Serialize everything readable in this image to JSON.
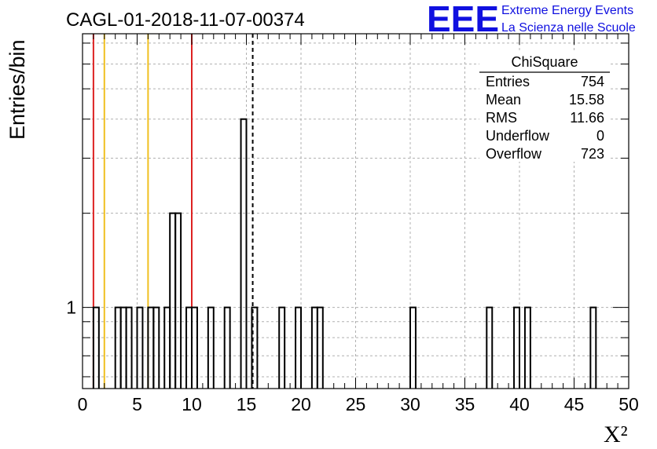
{
  "chart_data": {
    "type": "bar",
    "title": "CAGL-01-2018-11-07-00374",
    "xlabel": "X²",
    "ylabel": "Entries/bin",
    "xlim": [
      0,
      50
    ],
    "y_scale": "log",
    "ylim": [
      0.55,
      7.5
    ],
    "bin_width": 0.5,
    "x_tick_labels": [
      "0",
      "5",
      "10",
      "15",
      "20",
      "25",
      "30",
      "35",
      "40",
      "45",
      "50"
    ],
    "y_tick_labels": [
      "1"
    ],
    "grid": true,
    "bins": [
      {
        "x": 1.0,
        "value": 1
      },
      {
        "x": 3.0,
        "value": 1
      },
      {
        "x": 3.5,
        "value": 1
      },
      {
        "x": 4.0,
        "value": 1
      },
      {
        "x": 5.0,
        "value": 1
      },
      {
        "x": 6.0,
        "value": 1
      },
      {
        "x": 6.5,
        "value": 1
      },
      {
        "x": 7.5,
        "value": 1
      },
      {
        "x": 8.0,
        "value": 2
      },
      {
        "x": 8.5,
        "value": 2
      },
      {
        "x": 9.5,
        "value": 1
      },
      {
        "x": 10.0,
        "value": 1
      },
      {
        "x": 11.5,
        "value": 1
      },
      {
        "x": 13.0,
        "value": 1
      },
      {
        "x": 14.5,
        "value": 4
      },
      {
        "x": 15.5,
        "value": 1
      },
      {
        "x": 18.0,
        "value": 1
      },
      {
        "x": 19.5,
        "value": 1
      },
      {
        "x": 21.0,
        "value": 1
      },
      {
        "x": 21.5,
        "value": 1
      },
      {
        "x": 30.0,
        "value": 1
      },
      {
        "x": 37.0,
        "value": 1
      },
      {
        "x": 39.5,
        "value": 1
      },
      {
        "x": 40.5,
        "value": 1
      },
      {
        "x": 46.5,
        "value": 1
      }
    ],
    "reference_lines": [
      {
        "x": 1.0,
        "color": "#dd2222",
        "style": "solid"
      },
      {
        "x": 2.0,
        "color": "#f0c020",
        "style": "solid"
      },
      {
        "x": 6.0,
        "color": "#f0c020",
        "style": "solid"
      },
      {
        "x": 10.0,
        "color": "#dd2222",
        "style": "solid"
      },
      {
        "x": 15.58,
        "color": "#000000",
        "style": "dashed"
      }
    ],
    "stats_box": {
      "title": "ChiSquare",
      "rows": [
        {
          "label": "Entries",
          "value": "754"
        },
        {
          "label": "Mean",
          "value": "15.58"
        },
        {
          "label": "RMS",
          "value": "11.66"
        },
        {
          "label": "Underflow",
          "value": "0"
        },
        {
          "label": "Overflow",
          "value": "723"
        }
      ]
    }
  },
  "logo": {
    "mark": "EEE",
    "line1": "Extreme Energy Events",
    "line2": "La Scienza nelle Scuole",
    "color": "#1010e0"
  }
}
